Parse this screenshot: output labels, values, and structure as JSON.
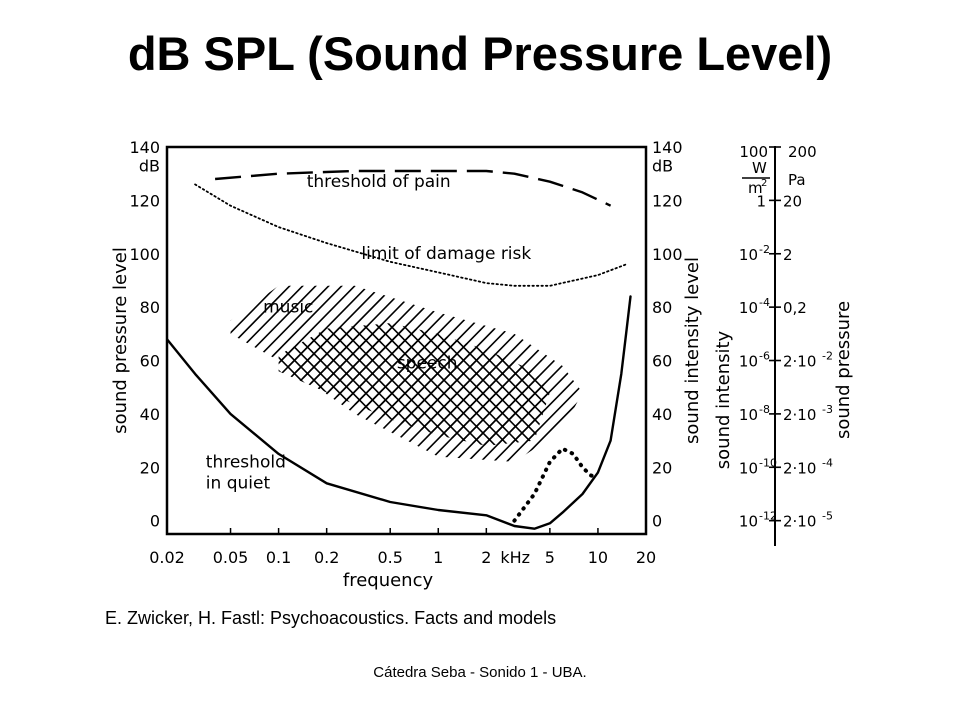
{
  "slide": {
    "title": "dB SPL (Sound Pressure Level)",
    "citation": "E. Zwicker, H. Fastl: Psychoacoustics. Facts and models",
    "footer": "Cátedra Seba - Sonido 1 - UBA."
  },
  "chart_data": {
    "type": "line",
    "title": "",
    "xlabel": "frequency",
    "ylabel_left": "sound pressure level",
    "ylabel_right": "sound intensity level",
    "x_scale": "log",
    "x_unit_label": "kHz",
    "xlim": [
      0.02,
      20
    ],
    "ylim": [
      -5,
      140
    ],
    "x_ticks": [
      {
        "value": 0.02,
        "label": "0.02"
      },
      {
        "value": 0.05,
        "label": "0.05"
      },
      {
        "value": 0.1,
        "label": "0.1"
      },
      {
        "value": 0.2,
        "label": "0.2"
      },
      {
        "value": 0.5,
        "label": "0.5"
      },
      {
        "value": 1,
        "label": "1"
      },
      {
        "value": 2,
        "label": "2"
      },
      {
        "value": 5,
        "label": "5"
      },
      {
        "value": 10,
        "label": "10"
      },
      {
        "value": 20,
        "label": "20"
      }
    ],
    "y_ticks": [
      0,
      20,
      40,
      60,
      80,
      100,
      120,
      140
    ],
    "y_unit": "dB",
    "series": [
      {
        "name": "threshold of pain",
        "style": "dashed",
        "x": [
          0.04,
          0.1,
          0.3,
          1,
          2,
          3,
          5,
          8,
          12
        ],
        "y": [
          128,
          130,
          131,
          131,
          131,
          130,
          127,
          123,
          118
        ]
      },
      {
        "name": "limit of damage risk",
        "style": "dotted",
        "x": [
          0.03,
          0.05,
          0.1,
          0.2,
          0.5,
          1,
          2,
          3,
          5,
          10,
          15
        ],
        "y": [
          126,
          118,
          110,
          104,
          97,
          93,
          89,
          88,
          88,
          92,
          96
        ]
      },
      {
        "name": "threshold in quiet",
        "style": "solid",
        "x": [
          0.02,
          0.03,
          0.05,
          0.1,
          0.2,
          0.5,
          1,
          2,
          3,
          4,
          5,
          6,
          8,
          10,
          12,
          14,
          15,
          16
        ],
        "y": [
          68,
          55,
          40,
          25,
          14,
          7,
          4,
          2,
          -2,
          -3,
          -1,
          3,
          10,
          18,
          30,
          55,
          70,
          84
        ]
      },
      {
        "name": "",
        "style": "dotted-heavy",
        "x": [
          3.0,
          4.0,
          5.0,
          6.0,
          7.0,
          8.0,
          9.0,
          10.0
        ],
        "y": [
          0,
          10,
          22,
          27,
          25,
          20,
          17,
          16
        ]
      }
    ],
    "regions": [
      {
        "name": "music",
        "hatch": "single",
        "polygon": [
          [
            0.05,
            75
          ],
          [
            0.1,
            88
          ],
          [
            0.3,
            88
          ],
          [
            1,
            78
          ],
          [
            3,
            70
          ],
          [
            6,
            58
          ],
          [
            8,
            48
          ],
          [
            6,
            34
          ],
          [
            3,
            22
          ],
          [
            1,
            24
          ],
          [
            0.3,
            40
          ],
          [
            0.1,
            60
          ],
          [
            0.05,
            70
          ]
        ]
      },
      {
        "name": "speech",
        "hatch": "cross",
        "polygon": [
          [
            0.1,
            62
          ],
          [
            0.2,
            72
          ],
          [
            0.5,
            74
          ],
          [
            1,
            70
          ],
          [
            2,
            64
          ],
          [
            4,
            56
          ],
          [
            5,
            48
          ],
          [
            4,
            30
          ],
          [
            2,
            28
          ],
          [
            1,
            32
          ],
          [
            0.5,
            38
          ],
          [
            0.2,
            48
          ],
          [
            0.1,
            56
          ]
        ]
      }
    ],
    "annotations": [
      {
        "text": "threshold of pain",
        "x": 0.15,
        "y": 125
      },
      {
        "text": "limit of damage risk",
        "x": 0.33,
        "y": 98
      },
      {
        "text": "music",
        "x": 0.08,
        "y": 78
      },
      {
        "text": "speech",
        "x": 0.55,
        "y": 57
      },
      {
        "text": "threshold",
        "x": 0.035,
        "y": 20
      },
      {
        "text": "in quiet",
        "x": 0.035,
        "y": 12
      }
    ],
    "side_scale": {
      "intensity_label": "sound intensity",
      "pressure_label": "sound pressure",
      "intensity_unit_top": "W",
      "intensity_unit_bottom": "m",
      "intensity_unit_exp": "2",
      "pressure_unit": "Pa",
      "rows": [
        {
          "db": 140,
          "intensity": "100",
          "pressure": "200"
        },
        {
          "db": 120,
          "intensity": "1",
          "pressure": "20"
        },
        {
          "db": 100,
          "intensity": "10",
          "intensity_exp": "-2",
          "pressure": "2"
        },
        {
          "db": 80,
          "intensity": "10",
          "intensity_exp": "-4",
          "pressure": "0,2"
        },
        {
          "db": 60,
          "intensity": "10",
          "intensity_exp": "-6",
          "pressure": "2·10",
          "pressure_exp": "-2"
        },
        {
          "db": 40,
          "intensity": "10",
          "intensity_exp": "-8",
          "pressure": "2·10",
          "pressure_exp": "-3"
        },
        {
          "db": 20,
          "intensity": "10",
          "intensity_exp": "-10",
          "pressure": "2·10",
          "pressure_exp": "-4"
        },
        {
          "db": 0,
          "intensity": "10",
          "intensity_exp": "-12",
          "pressure": "2·10",
          "pressure_exp": "-5"
        }
      ]
    }
  }
}
